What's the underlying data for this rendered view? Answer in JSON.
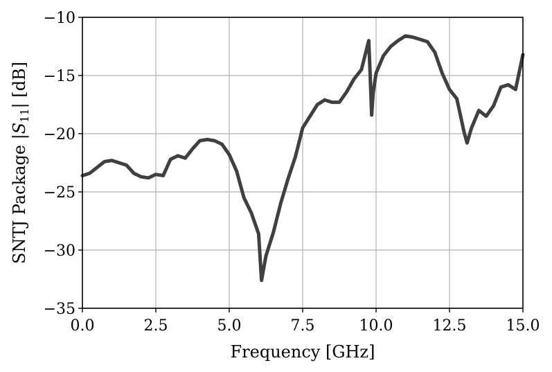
{
  "chart_data": {
    "type": "line",
    "title": "",
    "xlabel": "Frequency [GHz]",
    "ylabel": "SNTJ Package |S11| [dB]",
    "ylabel_parts": {
      "before": "SNTJ Package |",
      "symbol": "S",
      "subscript": "11",
      "after": "| [dB]"
    },
    "xlim": [
      0.0,
      15.0
    ],
    "ylim": [
      -35,
      -10
    ],
    "x_ticks": [
      0.0,
      2.5,
      5.0,
      7.5,
      10.0,
      12.5,
      15.0
    ],
    "x_tick_labels": [
      "0.0",
      "2.5",
      "5.0",
      "7.5",
      "10.0",
      "12.5",
      "15.0"
    ],
    "y_ticks": [
      -35,
      -30,
      -25,
      -20,
      -15,
      -10
    ],
    "y_tick_labels": [
      "−35",
      "−30",
      "−25",
      "−20",
      "−15",
      "−10"
    ],
    "grid": true,
    "line_color": "#404040",
    "series": [
      {
        "x": [
          0.0,
          0.25,
          0.5,
          0.75,
          1.0,
          1.25,
          1.5,
          1.75,
          2.0,
          2.25,
          2.5,
          2.75,
          3.0,
          3.25,
          3.5,
          3.75,
          4.0,
          4.25,
          4.5,
          4.75,
          5.0,
          5.25,
          5.5,
          5.75,
          6.0,
          6.1,
          6.25,
          6.5,
          6.75,
          7.0,
          7.25,
          7.5,
          7.75,
          8.0,
          8.25,
          8.5,
          8.75,
          9.0,
          9.25,
          9.5,
          9.7,
          9.75,
          9.8,
          9.85,
          9.9,
          10.0,
          10.25,
          10.5,
          10.75,
          11.0,
          11.25,
          11.5,
          11.75,
          12.0,
          12.25,
          12.5,
          12.75,
          13.0,
          13.1,
          13.25,
          13.5,
          13.75,
          14.0,
          14.25,
          14.5,
          14.75,
          15.0
        ],
        "y": [
          -23.6,
          -23.4,
          -22.9,
          -22.4,
          -22.3,
          -22.5,
          -22.7,
          -23.4,
          -23.7,
          -23.8,
          -23.5,
          -23.6,
          -22.2,
          -21.9,
          -22.1,
          -21.3,
          -20.6,
          -20.5,
          -20.6,
          -20.9,
          -21.8,
          -23.2,
          -25.5,
          -26.8,
          -28.6,
          -32.6,
          -30.5,
          -28.5,
          -26.0,
          -23.9,
          -22.0,
          -19.5,
          -18.5,
          -17.5,
          -17.1,
          -17.3,
          -17.3,
          -16.4,
          -15.3,
          -14.5,
          -12.5,
          -12.0,
          -15.0,
          -18.4,
          -16.5,
          -14.8,
          -13.3,
          -12.5,
          -12.0,
          -11.6,
          -11.7,
          -11.9,
          -12.1,
          -13.0,
          -14.8,
          -16.2,
          -17.0,
          -19.9,
          -20.8,
          -19.5,
          -18.0,
          -18.5,
          -17.6,
          -16.0,
          -15.8,
          -16.2,
          -13.2
        ]
      }
    ]
  }
}
